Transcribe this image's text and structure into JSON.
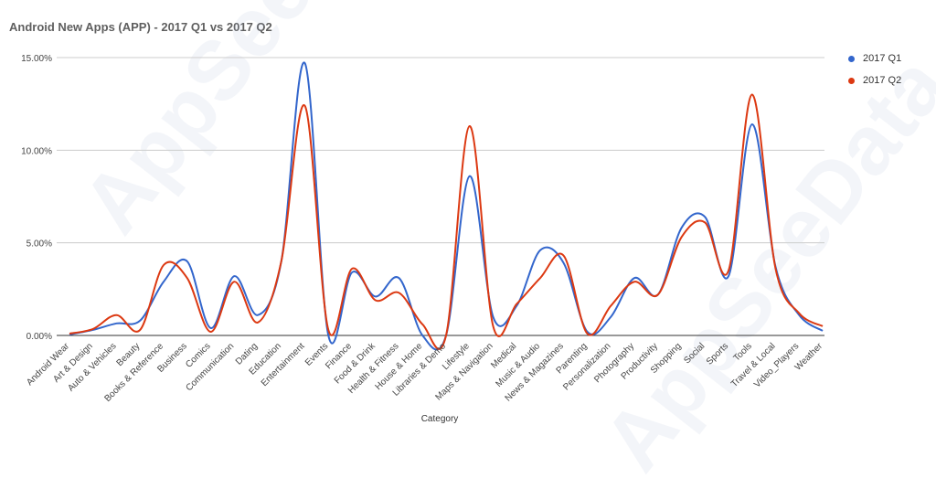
{
  "chart_data": {
    "type": "line",
    "title": "Android New Apps  (APP) - 2017 Q1 vs 2017 Q2",
    "xlabel": "Category",
    "ylabel": "",
    "ylim": [
      0,
      15
    ],
    "yticks": [
      "0.00%",
      "5.00%",
      "10.00%",
      "15.00%"
    ],
    "ytick_values": [
      0,
      5,
      10,
      15
    ],
    "grid": true,
    "legend_position": "right",
    "categories": [
      "Android Wear",
      "Art & Design",
      "Auto & Vehicles",
      "Beauty",
      "Books & Reference",
      "Business",
      "Comics",
      "Communication",
      "Dating",
      "Education",
      "Entertainment",
      "Events",
      "Finance",
      "Food & Drink",
      "Health & Fitness",
      "House & Home",
      "Libraries & Demo",
      "Lifestyle",
      "Maps & Navigation",
      "Medical",
      "Music & Audio",
      "News & Magazines",
      "Parenting",
      "Personalization",
      "Photography",
      "Productivity",
      "Shopping",
      "Social",
      "Sports",
      "Tools",
      "Travel & Local",
      "Video_Players",
      "Weather"
    ],
    "series": [
      {
        "name": "2017 Q1",
        "color": "#3366cc",
        "values": [
          0.05,
          0.3,
          0.65,
          0.8,
          2.9,
          4.0,
          0.4,
          3.2,
          1.1,
          4.0,
          14.7,
          0.0,
          3.4,
          2.1,
          3.1,
          0.0,
          0.0,
          8.6,
          1.0,
          1.6,
          4.6,
          3.9,
          0.2,
          1.0,
          3.1,
          2.2,
          5.8,
          6.4,
          3.2,
          11.4,
          3.7,
          1.1,
          0.25
        ]
      },
      {
        "name": "2017 Q2",
        "color": "#dc3912",
        "values": [
          0.1,
          0.35,
          1.1,
          0.3,
          3.8,
          3.1,
          0.2,
          2.9,
          0.7,
          4.0,
          12.4,
          0.3,
          3.6,
          1.9,
          2.3,
          0.6,
          0.0,
          11.3,
          0.5,
          1.7,
          3.1,
          4.3,
          0.1,
          1.6,
          2.9,
          2.2,
          5.3,
          6.1,
          3.5,
          13.0,
          3.6,
          1.2,
          0.5
        ]
      }
    ]
  },
  "watermark": "AppSeeData"
}
